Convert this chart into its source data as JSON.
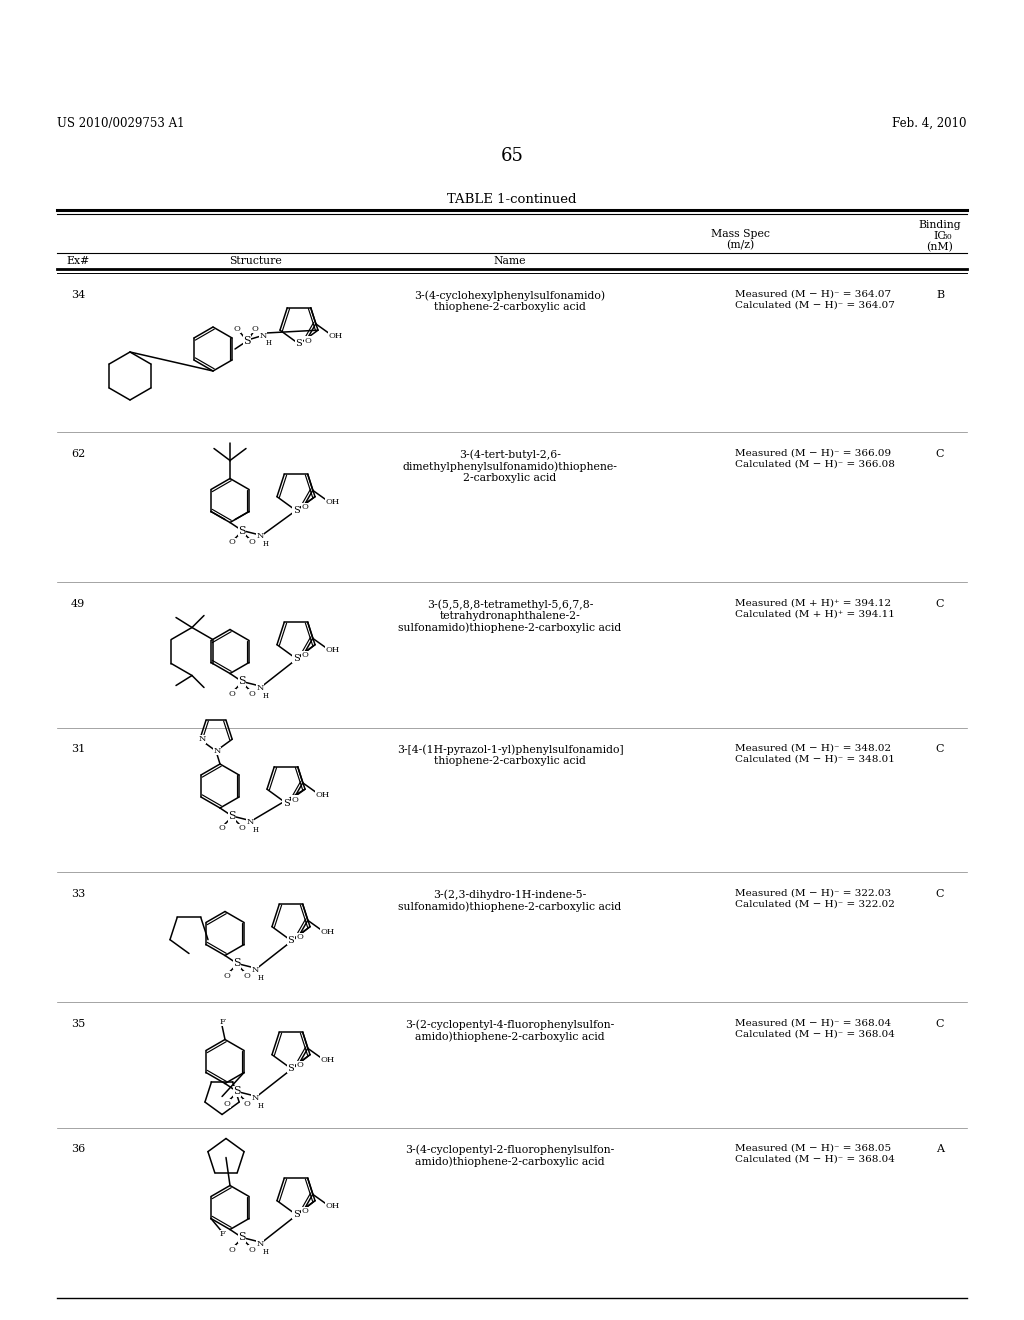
{
  "page_number": "65",
  "patent_number": "US 2010/0029753 A1",
  "patent_date": "Feb. 4, 2010",
  "table_title": "TABLE 1-continued",
  "background_color": "#ffffff",
  "text_color": "#000000",
  "rows": [
    {
      "ex": "34",
      "name": "3-(4-cyclohexylphenylsulfonamido)\nthiophene-2-carboxylic acid",
      "mass_spec": "Measured (M − H)⁻ = 364.07\nCalculated (M − H)⁻ = 364.07",
      "binding": "B"
    },
    {
      "ex": "62",
      "name": "3-(4-tert-butyl-2,6-\ndimethylphenylsulfonamido)thiophene-\n2-carboxylic acid",
      "mass_spec": "Measured (M − H)⁻ = 366.09\nCalculated (M − H)⁻ = 366.08",
      "binding": "C"
    },
    {
      "ex": "49",
      "name": "3-(5,5,8,8-tetramethyl-5,6,7,8-\ntetrahydronaphthalene-2-\nsulfonamido)thiophene-2-carboxylic acid",
      "mass_spec": "Measured (M + H)⁺ = 394.12\nCalculated (M + H)⁺ = 394.11",
      "binding": "C"
    },
    {
      "ex": "31",
      "name": "3-[4-(1H-pyrazol-1-yl)phenylsulfonamido]\nthiophene-2-carboxylic acid",
      "mass_spec": "Measured (M − H)⁻ = 348.02\nCalculated (M − H)⁻ = 348.01",
      "binding": "C"
    },
    {
      "ex": "33",
      "name": "3-(2,3-dihydro-1H-indene-5-\nsulfonamido)thiophene-2-carboxylic acid",
      "mass_spec": "Measured (M − H)⁻ = 322.03\nCalculated (M − H)⁻ = 322.02",
      "binding": "C"
    },
    {
      "ex": "35",
      "name": "3-(2-cyclopentyl-4-fluorophenylsulfon-\namido)thiophene-2-carboxylic acid",
      "mass_spec": "Measured (M − H)⁻ = 368.04\nCalculated (M − H)⁻ = 368.04",
      "binding": "C"
    },
    {
      "ex": "36",
      "name": "3-(4-cyclopentyl-2-fluorophenylsulfon-\namido)thiophene-2-carboxylic acid",
      "mass_spec": "Measured (M − H)⁻ = 368.05\nCalculated (M − H)⁻ = 368.04",
      "binding": "A"
    }
  ]
}
